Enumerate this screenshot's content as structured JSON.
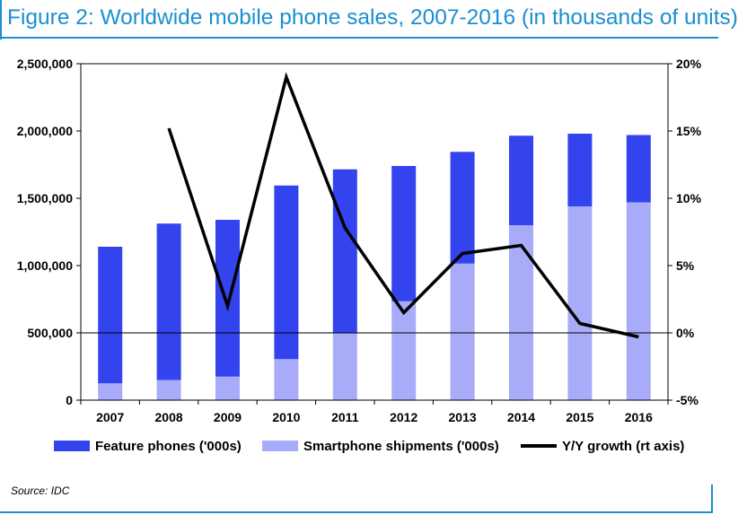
{
  "title": "Figure 2: Worldwide mobile phone sales, 2007-2016 (in thousands of units)",
  "source": "Source: IDC",
  "colors": {
    "title": "#1a8fd0",
    "feature": "#3344ee",
    "smartphone": "#a8acf8",
    "growth": "#000000"
  },
  "chart_data": {
    "type": "bar",
    "stacked": true,
    "categories": [
      "2007",
      "2008",
      "2009",
      "2010",
      "2011",
      "2012",
      "2013",
      "2014",
      "2015",
      "2016"
    ],
    "series": [
      {
        "name": "Feature phones ('000s)",
        "values": [
          1015000,
          1162000,
          1165000,
          1290000,
          1215000,
          1005000,
          830000,
          665000,
          540000,
          500000
        ]
      },
      {
        "name": "Smartphone shipments ('000s)",
        "values": [
          125000,
          150000,
          175000,
          305000,
          500000,
          735000,
          1015000,
          1300000,
          1440000,
          1470000
        ]
      }
    ],
    "line_series": {
      "name": "Y/Y growth (rt axis)",
      "axis": "right",
      "x": [
        "2008",
        "2009",
        "2010",
        "2011",
        "2012",
        "2013",
        "2014",
        "2015",
        "2016"
      ],
      "values": [
        15.2,
        2.0,
        19.0,
        7.8,
        1.5,
        5.9,
        6.5,
        0.7,
        -0.3
      ]
    },
    "ylim": [
      0,
      2500000
    ],
    "y_ticks": [
      "0",
      "500,000",
      "1,000,000",
      "1,500,000",
      "2,000,000",
      "2,500,000"
    ],
    "y2lim": [
      -5,
      20
    ],
    "y2_ticks": [
      "-5%",
      "0%",
      "5%",
      "10%",
      "15%",
      "20%"
    ],
    "reference_line": 500000,
    "grid": false,
    "legend_position": "bottom"
  }
}
